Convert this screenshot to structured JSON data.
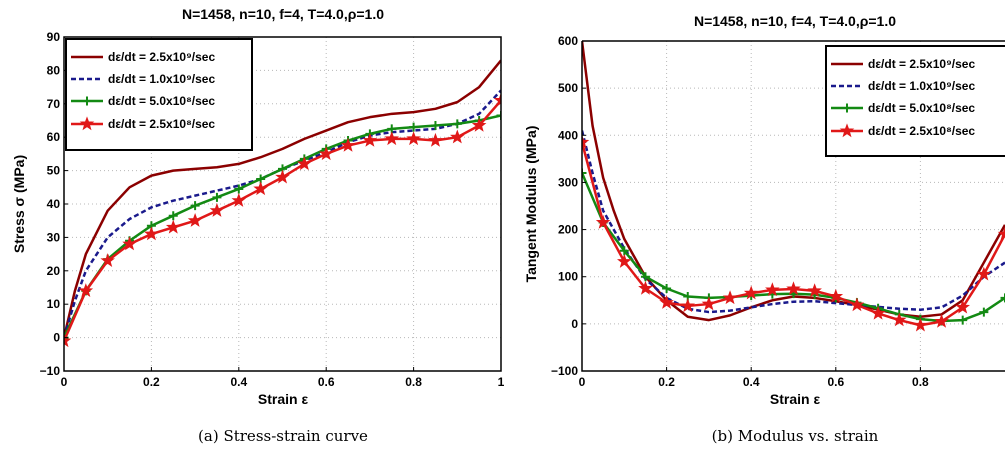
{
  "chart_data": [
    {
      "type": "line",
      "title": "N=1458, n=10, f=4, T=4.0,ρ=1.0",
      "xlabel": "Strain ε",
      "ylabel": "Stress σ (MPa)",
      "caption": "(a) Stress-strain curve",
      "xlim": [
        0,
        1
      ],
      "ylim": [
        -10,
        90
      ],
      "xticks": [
        0,
        0.2,
        0.4,
        0.6,
        0.8,
        1
      ],
      "xticklabels": [
        "0",
        "0.2",
        "0.4",
        "0.6",
        "0.8",
        "1"
      ],
      "yticks": [
        -10,
        0,
        10,
        20,
        30,
        40,
        50,
        60,
        70,
        80,
        90
      ],
      "yticklabels": [
        "−10",
        "0",
        "10",
        "20",
        "30",
        "40",
        "50",
        "60",
        "70",
        "80",
        "90"
      ],
      "grid": true,
      "legend_position": "top-left",
      "series": [
        {
          "name": "dε/dt = 2.5x10⁹/sec",
          "color": "#8b0000",
          "style": "solid",
          "marker": "none",
          "x": [
            0,
            0.025,
            0.05,
            0.1,
            0.15,
            0.2,
            0.25,
            0.3,
            0.35,
            0.4,
            0.45,
            0.5,
            0.55,
            0.6,
            0.65,
            0.7,
            0.75,
            0.8,
            0.85,
            0.9,
            0.95,
            1.0
          ],
          "y": [
            0,
            14,
            25,
            38,
            45,
            48.5,
            50,
            50.5,
            51,
            52,
            54,
            56.5,
            59.5,
            62,
            64.5,
            66,
            67,
            67.5,
            68.5,
            70.5,
            75,
            83
          ]
        },
        {
          "name": "dε/dt = 1.0x10⁹/sec",
          "color": "#1a1a8c",
          "style": "dashed",
          "marker": "none",
          "x": [
            0,
            0.025,
            0.05,
            0.1,
            0.15,
            0.2,
            0.25,
            0.3,
            0.35,
            0.4,
            0.45,
            0.5,
            0.55,
            0.6,
            0.65,
            0.7,
            0.75,
            0.8,
            0.85,
            0.9,
            0.95,
            1.0
          ],
          "y": [
            0,
            11,
            20,
            30,
            35.5,
            39,
            41,
            42.5,
            44,
            45.5,
            47.5,
            50.5,
            53,
            55.5,
            58.5,
            60.5,
            61.5,
            62,
            62.5,
            64,
            67,
            74
          ]
        },
        {
          "name": "dε/dt = 5.0x10⁸/sec",
          "color": "#138a13",
          "style": "solid",
          "marker": "plus",
          "x": [
            0,
            0.05,
            0.1,
            0.15,
            0.2,
            0.25,
            0.3,
            0.35,
            0.4,
            0.45,
            0.5,
            0.55,
            0.6,
            0.65,
            0.7,
            0.75,
            0.8,
            0.85,
            0.9,
            0.95,
            1.0
          ],
          "y": [
            0,
            14,
            23.5,
            29,
            33.5,
            36.5,
            39.5,
            42,
            44.5,
            47.5,
            50.5,
            53.5,
            56.5,
            59,
            61,
            62.5,
            63,
            63.5,
            64,
            65,
            66.5
          ]
        },
        {
          "name": "dε/dt = 2.5x10⁸/sec",
          "color": "#e01818",
          "style": "solid",
          "marker": "star",
          "x": [
            0,
            0.05,
            0.1,
            0.15,
            0.2,
            0.25,
            0.3,
            0.35,
            0.4,
            0.45,
            0.5,
            0.55,
            0.6,
            0.65,
            0.7,
            0.75,
            0.8,
            0.85,
            0.9,
            0.95,
            1.0
          ],
          "y": [
            -1,
            14,
            23,
            28,
            31,
            33,
            35,
            38,
            41,
            44.5,
            48,
            52,
            55,
            57.5,
            59,
            59.5,
            59.5,
            59,
            60,
            63.5,
            71
          ]
        }
      ]
    },
    {
      "type": "line",
      "title": "N=1458, n=10, f=4, T=4.0,ρ=1.0",
      "xlabel": "Strain ε",
      "ylabel": "Tangent Modulus (MPa)",
      "caption": "(b) Modulus vs. strain",
      "xlim": [
        0,
        1
      ],
      "ylim": [
        -100,
        600
      ],
      "xticks": [
        0,
        0.2,
        0.4,
        0.6,
        0.8
      ],
      "xticklabels": [
        "0",
        "0.2",
        "0.4",
        "0.6",
        "0.8"
      ],
      "yticks": [
        -100,
        0,
        100,
        200,
        300,
        400,
        500,
        600
      ],
      "yticklabels": [
        "−100",
        "0",
        "100",
        "200",
        "300",
        "400",
        "500",
        "600"
      ],
      "grid": true,
      "legend_position": "top-right",
      "series": [
        {
          "name": "dε/dt = 2.5x10⁹/sec",
          "color": "#8b0000",
          "style": "solid",
          "marker": "none",
          "x": [
            0,
            0.025,
            0.05,
            0.075,
            0.1,
            0.15,
            0.2,
            0.25,
            0.3,
            0.35,
            0.4,
            0.45,
            0.5,
            0.55,
            0.6,
            0.65,
            0.7,
            0.75,
            0.8,
            0.85,
            0.9,
            0.95,
            1.0
          ],
          "y": [
            600,
            420,
            310,
            240,
            180,
            100,
            50,
            15,
            8,
            18,
            35,
            50,
            58,
            55,
            48,
            40,
            30,
            20,
            15,
            20,
            50,
            130,
            210
          ]
        },
        {
          "name": "dε/dt = 1.0x10⁹/sec",
          "color": "#1a1a8c",
          "style": "dashed",
          "marker": "none",
          "x": [
            0,
            0.025,
            0.05,
            0.1,
            0.15,
            0.2,
            0.25,
            0.3,
            0.35,
            0.4,
            0.45,
            0.5,
            0.55,
            0.6,
            0.65,
            0.7,
            0.75,
            0.8,
            0.85,
            0.9,
            0.95,
            1.0
          ],
          "y": [
            410,
            320,
            240,
            160,
            95,
            55,
            32,
            25,
            28,
            35,
            42,
            47,
            48,
            44,
            40,
            36,
            32,
            30,
            35,
            60,
            100,
            130
          ]
        },
        {
          "name": "dε/dt = 5.0x10⁸/sec",
          "color": "#138a13",
          "style": "solid",
          "marker": "plus",
          "x": [
            0,
            0.05,
            0.1,
            0.15,
            0.2,
            0.25,
            0.3,
            0.35,
            0.4,
            0.45,
            0.5,
            0.55,
            0.6,
            0.65,
            0.7,
            0.75,
            0.8,
            0.85,
            0.9,
            0.95,
            1.0
          ],
          "y": [
            320,
            215,
            155,
            100,
            75,
            58,
            55,
            57,
            60,
            63,
            64,
            62,
            55,
            45,
            33,
            20,
            10,
            6,
            8,
            25,
            55
          ]
        },
        {
          "name": "dε/dt = 2.5x10⁸/sec",
          "color": "#e01818",
          "style": "solid",
          "marker": "star",
          "x": [
            0,
            0.05,
            0.1,
            0.15,
            0.2,
            0.25,
            0.3,
            0.35,
            0.4,
            0.45,
            0.5,
            0.55,
            0.6,
            0.65,
            0.7,
            0.75,
            0.8,
            0.85,
            0.9,
            0.95,
            1.0
          ],
          "y": [
            385,
            215,
            132,
            75,
            45,
            38,
            42,
            55,
            65,
            72,
            74,
            70,
            58,
            40,
            22,
            8,
            -3,
            5,
            35,
            105,
            190
          ]
        }
      ]
    }
  ]
}
